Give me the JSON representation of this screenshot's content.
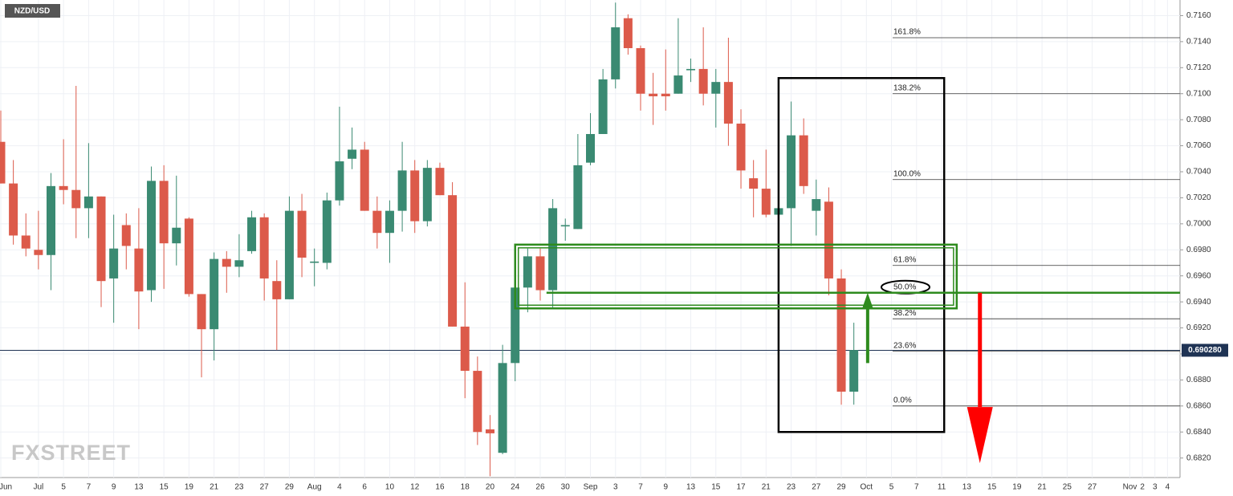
{
  "chart_data": {
    "type": "candlestick",
    "title": "NZD/USD",
    "watermark": "FXSTREET",
    "up_color": "#3a8a72",
    "down_color": "#dc5a4a",
    "grid": true,
    "ylim": [
      0.6805,
      0.7172
    ],
    "yticks": [
      {
        "value": 0.682,
        "label": "0.6820"
      },
      {
        "value": 0.684,
        "label": "0.6840"
      },
      {
        "value": 0.686,
        "label": "0.6860"
      },
      {
        "value": 0.688,
        "label": "0.6880"
      },
      {
        "value": 0.69,
        "label": "0.6900"
      },
      {
        "value": 0.692,
        "label": "0.6920"
      },
      {
        "value": 0.694,
        "label": "0.6940"
      },
      {
        "value": 0.696,
        "label": "0.6960"
      },
      {
        "value": 0.698,
        "label": "0.6980"
      },
      {
        "value": 0.7,
        "label": "0.7000"
      },
      {
        "value": 0.702,
        "label": "0.7020"
      },
      {
        "value": 0.704,
        "label": "0.7040"
      },
      {
        "value": 0.706,
        "label": "0.7060"
      },
      {
        "value": 0.708,
        "label": "0.7080"
      },
      {
        "value": 0.71,
        "label": "0.7100"
      },
      {
        "value": 0.712,
        "label": "0.7120"
      },
      {
        "value": 0.714,
        "label": "0.7140"
      },
      {
        "value": 0.716,
        "label": "0.7160"
      }
    ],
    "categories": [
      "Jun",
      null,
      null,
      "Jul",
      null,
      "5",
      null,
      "7",
      null,
      "9",
      null,
      "13",
      null,
      "15",
      null,
      "19",
      null,
      "21",
      null,
      "23",
      null,
      "27",
      null,
      "29",
      null,
      "Aug",
      null,
      "4",
      null,
      "6",
      null,
      "10",
      null,
      "12",
      null,
      "16",
      null,
      "18",
      null,
      "20",
      null,
      "24",
      null,
      "26",
      null,
      "30",
      null,
      "Sep",
      null,
      "3",
      null,
      "7",
      null,
      "9",
      null,
      "13",
      null,
      "15",
      null,
      "17",
      null,
      "21",
      null,
      "23",
      null,
      "27",
      null,
      "29",
      null,
      "Oct",
      null,
      "5",
      null,
      "7",
      null,
      "11",
      null,
      "13",
      null,
      "15",
      null,
      "19",
      null,
      "21",
      null,
      "25",
      null,
      "27",
      null,
      null,
      "Nov",
      "2",
      "3",
      "4"
    ],
    "open": [
      0.7063,
      0.7031,
      0.6991,
      0.698,
      0.6976,
      0.7029,
      0.7026,
      0.7012,
      0.7021,
      0.6958,
      0.6999,
      0.6981,
      0.6949,
      0.7033,
      0.6985,
      0.7004,
      0.6946,
      0.6919,
      0.6973,
      0.6967,
      0.6979,
      0.7005,
      0.6956,
      0.6942,
      0.701,
      0.697,
      0.697,
      0.7018,
      0.705,
      0.7057,
      0.701,
      0.6993,
      0.701,
      0.7041,
      0.7002,
      0.7043,
      0.7022,
      0.6921,
      0.6887,
      0.6842,
      0.6824,
      0.6893,
      0.6951,
      0.6975,
      0.6949,
      0.6998,
      0.6996,
      0.7047,
      0.7069,
      0.7111,
      0.7158,
      0.7135,
      0.71,
      0.71,
      0.71,
      0.7118,
      0.7119,
      0.71,
      0.7109,
      0.7077,
      0.7035,
      0.7027,
      0.7007,
      0.7012,
      0.7068,
      0.701,
      0.7017,
      0.6958,
      0.6871,
      null,
      null,
      null,
      null,
      null,
      null,
      null,
      null,
      null,
      null,
      null,
      null,
      null,
      null,
      null,
      null,
      null,
      null,
      null,
      null,
      null,
      null,
      null,
      null,
      null
    ],
    "high": [
      0.7087,
      0.7049,
      0.7008,
      0.701,
      0.7039,
      0.7065,
      0.7106,
      0.7062,
      0.7021,
      0.7007,
      0.7008,
      0.7012,
      0.7044,
      0.7045,
      0.7037,
      0.7005,
      0.6946,
      0.6978,
      0.6979,
      0.6992,
      0.701,
      0.7008,
      0.6972,
      0.7021,
      0.7023,
      0.6981,
      0.7024,
      0.709,
      0.7074,
      0.7063,
      0.7021,
      0.7018,
      0.7063,
      0.7049,
      0.7049,
      0.7047,
      0.7032,
      0.6955,
      0.6898,
      0.6853,
      0.6907,
      0.6962,
      0.6981,
      0.6981,
      0.7019,
      0.7004,
      0.7069,
      0.7085,
      0.7119,
      0.717,
      0.7161,
      0.7137,
      0.7116,
      0.7134,
      0.7158,
      0.7127,
      0.7151,
      0.7119,
      0.7143,
      0.7088,
      0.7049,
      0.7057,
      0.7013,
      0.7094,
      0.7081,
      0.7034,
      0.7028,
      0.6965,
      0.6924,
      null,
      null,
      null,
      null,
      null,
      null,
      null,
      null,
      null,
      null,
      null,
      null,
      null,
      null,
      null,
      null,
      null,
      null,
      null,
      null,
      null,
      null,
      null,
      null,
      null
    ],
    "low": [
      0.7031,
      0.6984,
      0.6975,
      0.6965,
      0.6949,
      0.7015,
      0.6989,
      0.6989,
      0.6936,
      0.6924,
      0.6965,
      0.6919,
      0.694,
      0.695,
      0.6968,
      0.6944,
      0.6882,
      0.6895,
      0.6947,
      0.6959,
      0.6977,
      0.6941,
      0.6903,
      0.6942,
      0.6959,
      0.6952,
      0.6965,
      0.7014,
      0.7042,
      0.701,
      0.6981,
      0.697,
      0.6994,
      0.6993,
      0.6998,
      0.7022,
      0.6921,
      0.6866,
      0.683,
      0.6806,
      0.6823,
      0.6879,
      0.6932,
      0.6941,
      0.6935,
      0.6987,
      0.6996,
      0.7045,
      0.7069,
      0.7104,
      0.713,
      0.7087,
      0.7076,
      0.7087,
      0.71,
      0.7109,
      0.7091,
      0.7074,
      0.706,
      0.7027,
      0.7005,
      0.7005,
      0.7004,
      0.6983,
      0.7023,
      0.6991,
      0.6945,
      0.6861,
      0.6861,
      null,
      null,
      null,
      null,
      null,
      null,
      null,
      null,
      null,
      null,
      null,
      null,
      null,
      null,
      null,
      null,
      null,
      null,
      null,
      null,
      null,
      null,
      null,
      null,
      null
    ],
    "close": [
      0.7031,
      0.6991,
      0.6981,
      0.6976,
      0.7029,
      0.7026,
      0.7012,
      0.7021,
      0.6956,
      0.6981,
      0.6983,
      0.6948,
      0.7033,
      0.6985,
      0.6997,
      0.6946,
      0.6919,
      0.6973,
      0.6967,
      0.6972,
      0.7005,
      0.6958,
      0.6942,
      0.701,
      0.6974,
      0.6971,
      0.7018,
      0.7048,
      0.7057,
      0.701,
      0.6993,
      0.701,
      0.7041,
      0.7002,
      0.7043,
      0.7022,
      0.6921,
      0.6887,
      0.684,
      0.6839,
      0.6893,
      0.6951,
      0.6975,
      0.6949,
      0.7012,
      0.6999,
      0.7045,
      0.7069,
      0.7111,
      0.7151,
      0.7135,
      0.71,
      0.7098,
      0.7098,
      0.7114,
      0.7119,
      0.71,
      0.7109,
      0.7077,
      0.7041,
      0.7027,
      0.7007,
      0.7012,
      0.7068,
      0.7029,
      0.7019,
      0.6958,
      0.6871,
      0.6903,
      null,
      null,
      null,
      null,
      null,
      null,
      null,
      null,
      null,
      null,
      null,
      null,
      null,
      null,
      null,
      null,
      null,
      null,
      null,
      null,
      null,
      null,
      null,
      null,
      null
    ],
    "last_price": {
      "value": 0.69028,
      "label": "0.690280"
    },
    "fib_levels": [
      {
        "label": "161.8%",
        "price": 0.7143
      },
      {
        "label": "138.2%",
        "price": 0.71
      },
      {
        "label": "100.0%",
        "price": 0.7034
      },
      {
        "label": "61.8%",
        "price": 0.6968
      },
      {
        "label": "50.0%",
        "price": 0.6947
      },
      {
        "label": "38.2%",
        "price": 0.6927
      },
      {
        "label": "23.6%",
        "price": 0.6902
      },
      {
        "label": "0.0%",
        "price": 0.686
      }
    ],
    "boxes": [
      {
        "x": [
          62,
          75.2
        ],
        "y": [
          0.684,
          0.7112
        ],
        "color": "#000000"
      },
      {
        "x": [
          41,
          76.2
        ],
        "y": [
          0.6935,
          0.6984
        ],
        "color": "#2e8b1e"
      }
    ],
    "lines": [
      {
        "x": [
          43.5,
          94
        ],
        "y": 0.6947,
        "color": "#2e8b1e"
      }
    ],
    "arrows": [
      {
        "x": 69.1,
        "from": 0.6893,
        "to": 0.6947,
        "color": "#2e8b1e"
      },
      {
        "x": 78.05,
        "from": 0.6947,
        "to": 0.6816,
        "color": "#ff0000"
      }
    ]
  }
}
